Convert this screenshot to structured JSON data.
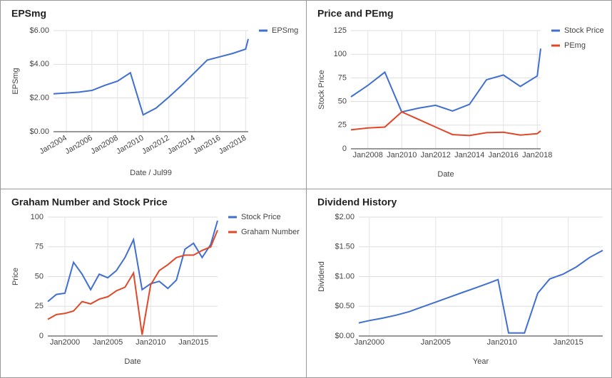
{
  "chart_data": [
    {
      "type": "line",
      "title": "EPSmg",
      "xlabel": "Date / Jul99",
      "ylabel": "EPSmg",
      "x": [
        2003,
        2004,
        2005,
        2006,
        2007,
        2008,
        2009,
        2010,
        2011,
        2012,
        2013,
        2014,
        2015,
        2016,
        2017,
        2018,
        2018.2
      ],
      "series": [
        {
          "name": "EPSmg",
          "color": "#3f6fd0",
          "values": [
            2.25,
            2.3,
            2.35,
            2.45,
            2.75,
            3.0,
            3.5,
            1.0,
            1.4,
            2.05,
            2.75,
            3.5,
            4.25,
            4.45,
            4.65,
            4.9,
            5.5
          ]
        }
      ],
      "xlim": [
        2003,
        2018.2
      ],
      "xticks": [
        {
          "value": 2004,
          "label": "Jan2004"
        },
        {
          "value": 2006,
          "label": "Jan2006"
        },
        {
          "value": 2008,
          "label": "Jan2008"
        },
        {
          "value": 2010,
          "label": "Jan2010"
        },
        {
          "value": 2012,
          "label": "Jan2012"
        },
        {
          "value": 2014,
          "label": "Jan2014"
        },
        {
          "value": 2016,
          "label": "Jan2016"
        },
        {
          "value": 2018,
          "label": "Jan2018"
        }
      ],
      "ylim": [
        0,
        6
      ],
      "yticks": [
        {
          "value": 0,
          "label": "$0.00"
        },
        {
          "value": 2,
          "label": "$2.00"
        },
        {
          "value": 4,
          "label": "$4.00"
        },
        {
          "value": 6,
          "label": "$6.00"
        }
      ],
      "grid": true,
      "legend": "right"
    },
    {
      "type": "line",
      "title": "Price and PEmg",
      "xlabel": "Date",
      "ylabel": "Stock Price",
      "x": [
        2007,
        2008,
        2009,
        2010,
        2011,
        2012,
        2013,
        2014,
        2015,
        2016,
        2017,
        2018,
        2018.2
      ],
      "series": [
        {
          "name": "Stock Price",
          "color": "#3f6fd0",
          "values": [
            55,
            67,
            81,
            39,
            43,
            46,
            40,
            47,
            73,
            78,
            66,
            77,
            106
          ]
        },
        {
          "name": "PEmg",
          "color": "#e0482a",
          "values": [
            20,
            22,
            23,
            39,
            31,
            23,
            15,
            14,
            17,
            17.5,
            14.5,
            16,
            19
          ]
        }
      ],
      "xlim": [
        2007,
        2018.2
      ],
      "xticks": [
        {
          "value": 2008,
          "label": "Jan2008"
        },
        {
          "value": 2010,
          "label": "Jan2010"
        },
        {
          "value": 2012,
          "label": "Jan2012"
        },
        {
          "value": 2014,
          "label": "Jan2014"
        },
        {
          "value": 2016,
          "label": "Jan2016"
        },
        {
          "value": 2018,
          "label": "Jan2018"
        }
      ],
      "ylim": [
        0,
        125
      ],
      "yticks": [
        0,
        25,
        50,
        75,
        100,
        125
      ],
      "grid": true,
      "legend": "right"
    },
    {
      "type": "line",
      "title": "Graham Number and Stock Price",
      "xlabel": "Date",
      "ylabel": "Price",
      "x": [
        1998,
        1999,
        2000,
        2001,
        2002,
        2003,
        2004,
        2005,
        2006,
        2007,
        2008,
        2009,
        2010,
        2011,
        2012,
        2013,
        2014,
        2015,
        2016,
        2017,
        2017.8
      ],
      "series": [
        {
          "name": "Stock Price",
          "color": "#3f6fd0",
          "values": [
            29,
            35,
            36,
            62,
            52,
            39,
            52,
            49,
            55,
            66,
            81,
            39,
            44,
            46,
            40,
            47,
            73,
            78,
            66,
            77,
            97
          ]
        },
        {
          "name": "Graham Number",
          "color": "#e0482a",
          "values": [
            14,
            18,
            19,
            21,
            29,
            27,
            31,
            33,
            38,
            41,
            53,
            1,
            43,
            55,
            60,
            66,
            68,
            68,
            72,
            75,
            89
          ]
        }
      ],
      "xlim": [
        1998,
        2017.8
      ],
      "xticks": [
        {
          "value": 2000,
          "label": "Jan2000"
        },
        {
          "value": 2005,
          "label": "Jan2005"
        },
        {
          "value": 2010,
          "label": "Jan2010"
        },
        {
          "value": 2015,
          "label": "Jan2015"
        }
      ],
      "ylim": [
        0,
        100
      ],
      "yticks": [
        0,
        25,
        50,
        75,
        100
      ],
      "grid": true,
      "legend": "right"
    },
    {
      "type": "line",
      "title": "Dividend History",
      "xlabel": "Year",
      "ylabel": "Dividend",
      "x": [
        1999.2,
        2000,
        2001,
        2002,
        2003,
        2004,
        2005,
        2006,
        2007,
        2008,
        2009,
        2009.7,
        2010.5,
        2011.7,
        2012.7,
        2013.6,
        2014.6,
        2015.6,
        2016.6,
        2017.6
      ],
      "series": [
        {
          "name": "Dividend",
          "color": "#3f6fd0",
          "values": [
            0.22,
            0.26,
            0.3,
            0.35,
            0.41,
            0.49,
            0.57,
            0.65,
            0.73,
            0.81,
            0.89,
            0.95,
            0.05,
            0.05,
            0.72,
            0.96,
            1.04,
            1.16,
            1.32,
            1.44
          ]
        }
      ],
      "xlim": [
        1999.2,
        2017.6
      ],
      "xticks": [
        {
          "value": 2000,
          "label": "Jan2000"
        },
        {
          "value": 2005,
          "label": "Jan2005"
        },
        {
          "value": 2010,
          "label": "Jan2010"
        },
        {
          "value": 2015,
          "label": "Jan2015"
        }
      ],
      "ylim": [
        0,
        2
      ],
      "yticks": [
        {
          "value": 0,
          "label": "$0.00"
        },
        {
          "value": 0.5,
          "label": "$0.50"
        },
        {
          "value": 1,
          "label": "$1.00"
        },
        {
          "value": 1.5,
          "label": "$1.50"
        },
        {
          "value": 2,
          "label": "$2.00"
        }
      ],
      "grid": true
    }
  ]
}
